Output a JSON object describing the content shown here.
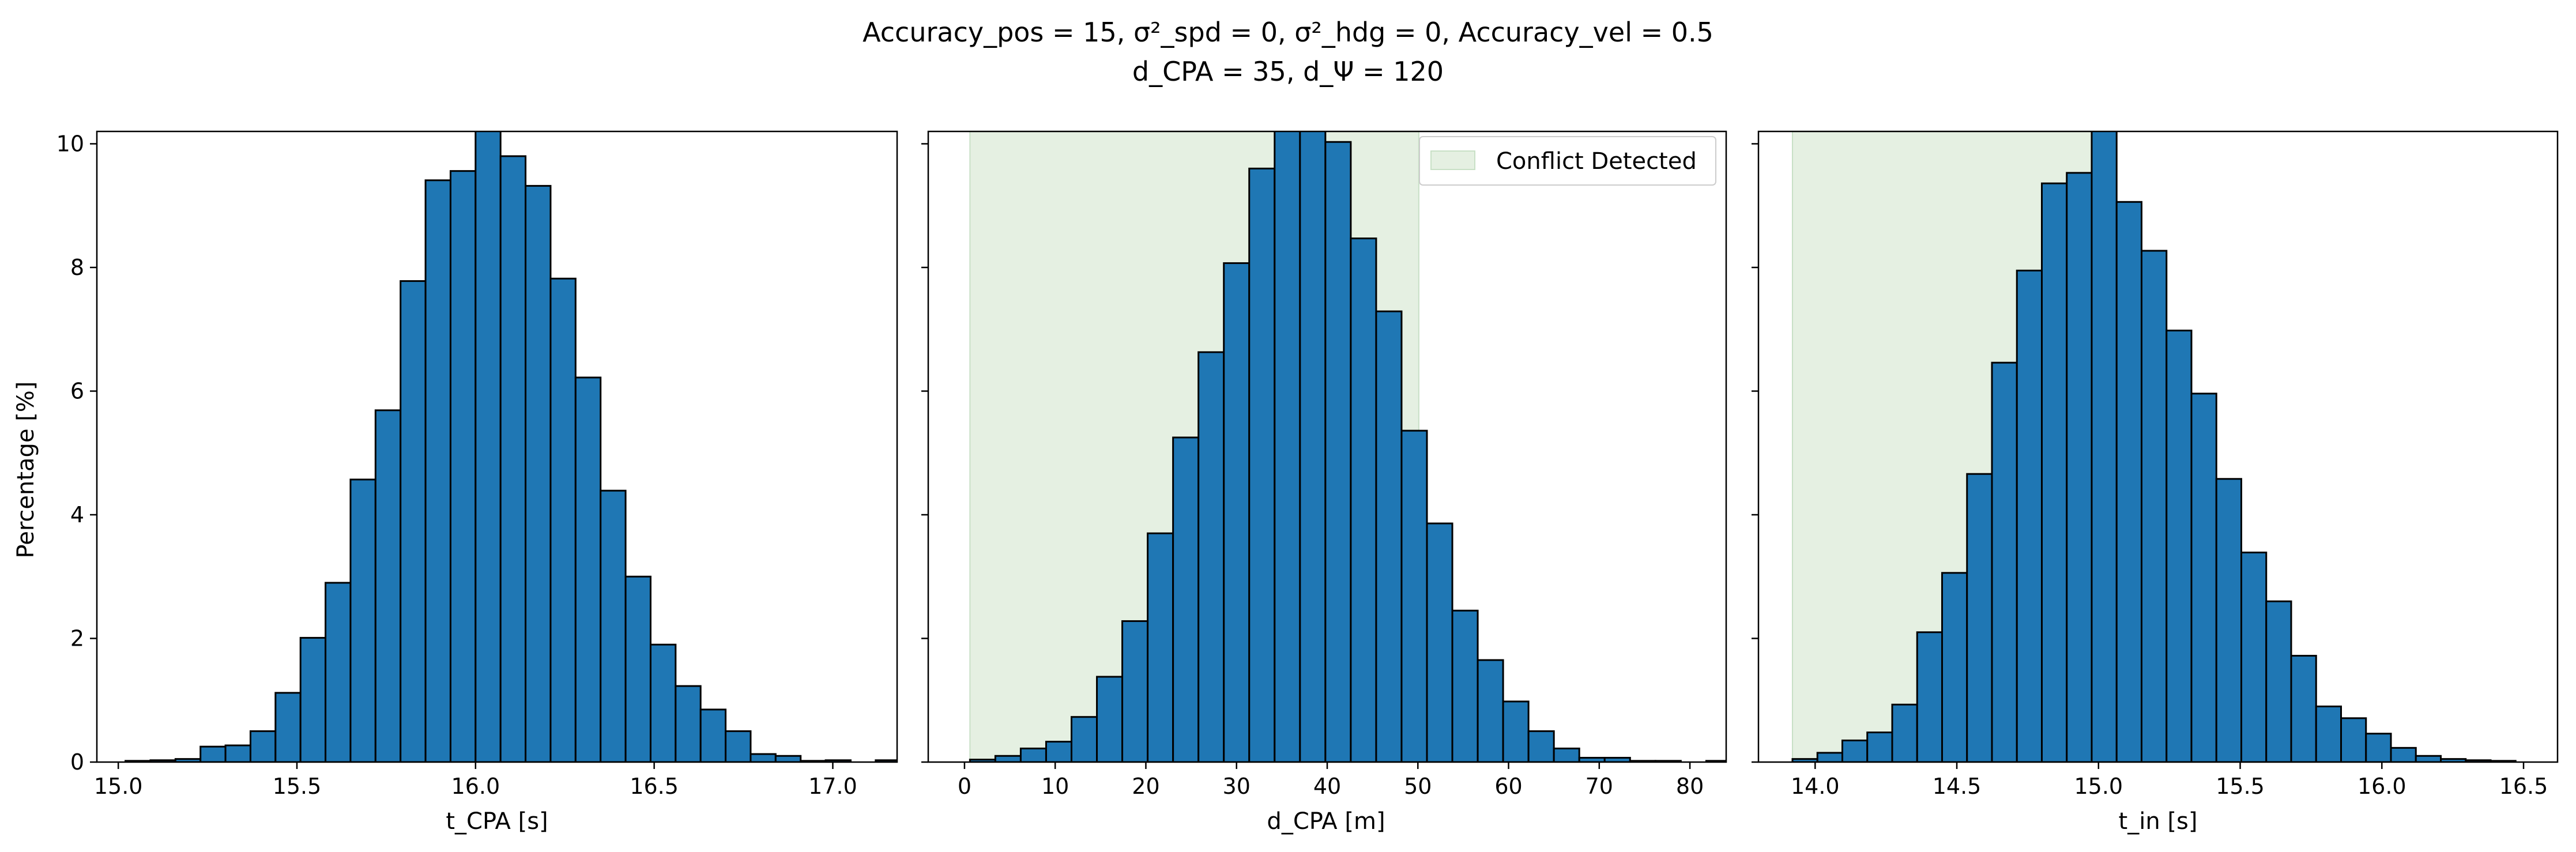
{
  "figure_title": {
    "line1": "Accuracy_pos = 15, σ²_spd = 0, σ²_hdg = 0, Accuracy_vel = 0.5",
    "line2": "d_CPA = 35, d_Ψ = 120"
  },
  "colors": {
    "bar_fill": "#1f77b4",
    "bar_edge": "#000000",
    "shade": "#e5f0e2",
    "shade_edge": "#c8e0c6"
  },
  "shared_y": {
    "label": "Percentage [%]",
    "ylim": [
      0,
      10.2
    ],
    "ticks": [
      0,
      2,
      4,
      6,
      8,
      10
    ],
    "tick_labels": [
      "0",
      "2",
      "4",
      "6",
      "8",
      "10"
    ]
  },
  "chart_data": [
    {
      "type": "bar",
      "xlabel": "t_CPA [s]",
      "xlim": [
        14.94,
        17.18
      ],
      "xticks": [
        15.0,
        15.5,
        16.0,
        16.5,
        17.0
      ],
      "xtick_labels": [
        "15.0",
        "15.5",
        "16.0",
        "16.5",
        "17.0"
      ],
      "bin_start": 15.02,
      "bin_width": 0.07,
      "values": [
        0.02,
        0.03,
        0.05,
        0.25,
        0.27,
        0.5,
        1.12,
        2.01,
        2.9,
        4.57,
        5.69,
        7.78,
        9.41,
        9.56,
        10.3,
        9.8,
        9.32,
        7.82,
        6.22,
        4.39,
        3.0,
        1.9,
        1.23,
        0.85,
        0.5,
        0.13,
        0.1,
        0.02,
        0.03,
        0.0,
        0.03
      ]
    },
    {
      "type": "bar",
      "xlabel": "d_CPA [m]",
      "xlim": [
        -4,
        84
      ],
      "xticks": [
        0,
        10,
        20,
        30,
        40,
        50,
        60,
        70,
        80
      ],
      "xtick_labels": [
        "0",
        "10",
        "20",
        "30",
        "40",
        "50",
        "60",
        "70",
        "80"
      ],
      "shaded_span": [
        0.6,
        50.1
      ],
      "legend": {
        "entries": [
          "Conflict Detected"
        ],
        "placement": "top-right"
      },
      "bin_start": 0.6,
      "bin_width": 2.8,
      "values": [
        0.04,
        0.1,
        0.22,
        0.33,
        0.73,
        1.38,
        2.28,
        3.7,
        5.25,
        6.63,
        8.07,
        9.6,
        10.3,
        10.3,
        10.03,
        8.47,
        7.29,
        5.36,
        3.86,
        2.45,
        1.65,
        0.98,
        0.5,
        0.22,
        0.07,
        0.07,
        0.02,
        0.02,
        0.0,
        0.02
      ]
    },
    {
      "type": "bar",
      "xlabel": "t_in [s]",
      "xlim": [
        13.8,
        16.62
      ],
      "xticks": [
        14.0,
        14.5,
        15.0,
        15.5,
        16.0,
        16.5
      ],
      "xtick_labels": [
        "14.0",
        "14.5",
        "15.0",
        "15.5",
        "16.0",
        "16.5"
      ],
      "shaded_span": [
        13.92,
        15.05
      ],
      "bin_start": 13.92,
      "bin_width": 0.088,
      "values": [
        0.05,
        0.15,
        0.35,
        0.48,
        0.93,
        2.1,
        3.06,
        4.66,
        6.46,
        7.95,
        9.36,
        9.53,
        10.3,
        9.06,
        8.27,
        6.98,
        5.96,
        4.58,
        3.39,
        2.6,
        1.72,
        0.9,
        0.71,
        0.46,
        0.23,
        0.1,
        0.05,
        0.03,
        0.02
      ]
    }
  ]
}
